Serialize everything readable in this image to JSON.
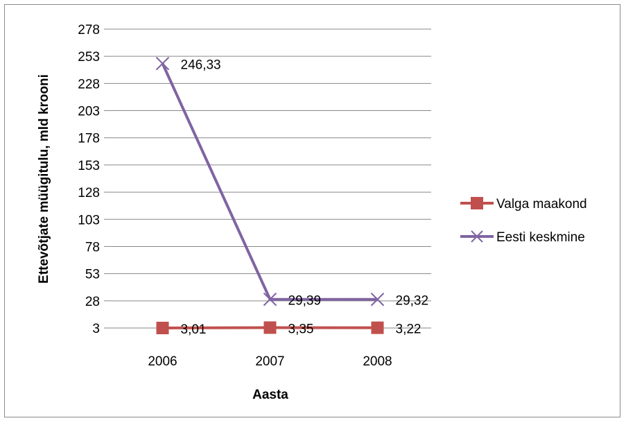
{
  "chart_data": {
    "type": "line",
    "title": "",
    "xlabel": "Aasta",
    "ylabel": "Ettevõtjate müügitulu, mld krooni",
    "categories": [
      "2006",
      "2007",
      "2008"
    ],
    "y_ticks": [
      "3",
      "28",
      "53",
      "78",
      "103",
      "128",
      "153",
      "178",
      "203",
      "228",
      "253",
      "278"
    ],
    "ylim": [
      3,
      278
    ],
    "grid": true,
    "legend_position": "right",
    "series": [
      {
        "name": "Valga maakond",
        "values": [
          3.01,
          3.35,
          3.22
        ],
        "labels": [
          "3,01",
          "3,35",
          "3,22"
        ],
        "color": "#c0504d",
        "marker": "square"
      },
      {
        "name": "Eesti keskmine",
        "values": [
          246.33,
          29.39,
          29.32
        ],
        "labels": [
          "246,33",
          "29,39",
          "29,32"
        ],
        "color": "#8064a2",
        "marker": "x"
      }
    ]
  }
}
